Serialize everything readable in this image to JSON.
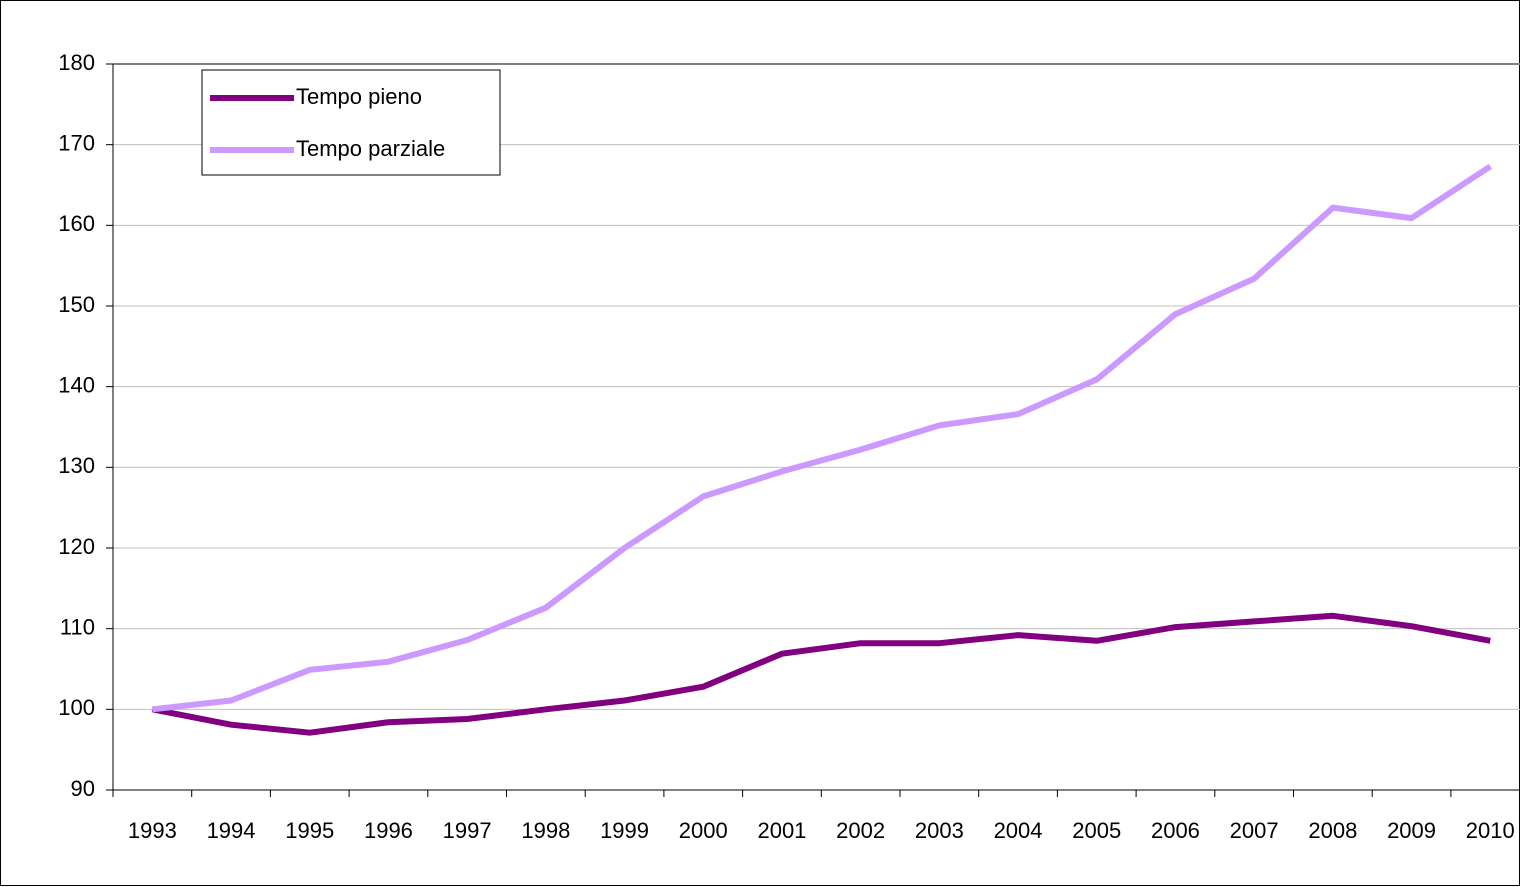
{
  "chart_data": {
    "type": "line",
    "categories": [
      "1993",
      "1994",
      "1995",
      "1996",
      "1997",
      "1998",
      "1999",
      "2000",
      "2001",
      "2002",
      "2003",
      "2004",
      "2005",
      "2006",
      "2007",
      "2008",
      "2009",
      "2010"
    ],
    "series": [
      {
        "name": "Tempo pieno",
        "color": "#800080",
        "values": [
          100,
          98.1,
          97.1,
          98.4,
          98.8,
          100,
          101.1,
          102.8,
          106.9,
          108.2,
          108.2,
          109.2,
          108.5,
          110.2,
          110.9,
          111.6,
          110.3,
          108.5
        ]
      },
      {
        "name": "Tempo parziale",
        "color": "#cc99ff",
        "values": [
          100,
          101.1,
          104.9,
          105.9,
          108.6,
          112.6,
          120,
          126.4,
          129.5,
          132.2,
          135.2,
          136.6,
          140.9,
          149,
          153.4,
          162.2,
          160.9,
          167.3
        ]
      }
    ],
    "ylim": [
      90,
      180
    ],
    "yticks": [
      90,
      100,
      110,
      120,
      130,
      140,
      150,
      160,
      170,
      180
    ],
    "grid": true,
    "legend": "upper left"
  }
}
